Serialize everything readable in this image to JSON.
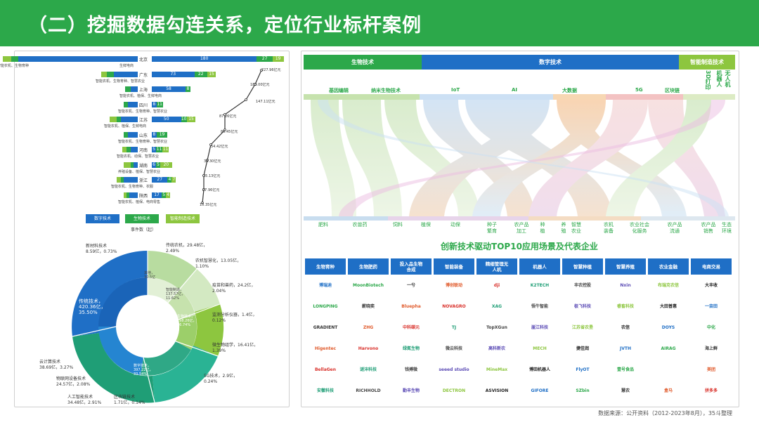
{
  "title": "（二）挖掘数据勾连关系，定位行业标杆案例",
  "left_bar": {
    "rows": [
      {
        "province": "北京",
        "left_label": "智能农机、生物育种",
        "right_label": "生鲜电商",
        "values": [
          "180",
          "27",
          "19"
        ]
      },
      {
        "province": "广东",
        "left_label": "智能农机、生物育种、智慧农业",
        "right_label": "",
        "values": [
          "73",
          "22",
          "15"
        ]
      },
      {
        "province": "上海",
        "left_label": "智能农机、植保、生鲜电商",
        "right_label": "",
        "values": [
          "58",
          "8",
          ""
        ]
      },
      {
        "province": "四川",
        "left_label": "智能农机、生物育种、智慧农业",
        "right_label": "",
        "values": [
          "8",
          "11",
          ""
        ]
      },
      {
        "province": "江苏",
        "left_label": "智能农机、植保、生鲜电商",
        "right_label": "",
        "values": [
          "50",
          "10",
          "15"
        ]
      },
      {
        "province": "山东",
        "left_label": "智能农机、生物育种、智慧农业",
        "right_label": "",
        "values": [
          "8",
          "19",
          ""
        ]
      },
      {
        "province": "河南",
        "left_label": "智能农机、动保、智慧农业",
        "right_label": "",
        "values": [
          "5",
          "11",
          "11"
        ]
      },
      {
        "province": "湖南",
        "left_label": "养殖设备、植保、智慧农业",
        "right_label": "",
        "values": [
          "6",
          "5",
          "20"
        ]
      },
      {
        "province": "浙江",
        "left_label": "智能农机、生物育种、农服",
        "right_label": "",
        "values": [
          "27",
          "4",
          "7"
        ]
      },
      {
        "province": "陕西",
        "left_label": "智能农机、植保、电商零售",
        "right_label": "",
        "values": [
          "17",
          "5",
          "4"
        ]
      }
    ],
    "line_labels": [
      "227.96亿元",
      "183.00亿元",
      "147.11亿元",
      "87.26亿元",
      "86.45亿元",
      "54.42亿元",
      "38.30亿元",
      "35.13亿元",
      "27.96亿元",
      "15.35亿元"
    ],
    "legend": [
      "数字技术",
      "生物技术",
      "智能制造技术"
    ],
    "axis_label": "事件数（起）"
  },
  "donut": {
    "outer_labels": [
      "新材料技术\n8.59亿，0.73%",
      "传统农机，29.48亿，\n2.49%",
      "农机智慧化，13.05亿，\n1.10%",
      "疫苗和兽药，24.2亿，\n2.04%",
      "监测分析仪器，1.4亿，\n0.12%",
      "微生物组学，16.41亿，\n1.39%",
      "5G技术，2.9亿，\n0.24%",
      "区块链技术\n1.71亿，0.14%",
      "人工智能技术\n34.48亿，2.91%",
      "物联网设备技术\n24.57亿，2.08%",
      "云计算技术\n38.69亿，3.27%"
    ],
    "inner_labels": [
      "传统技术，\n420.36亿，\n35.50%",
      "数字技术，\n397.22亿，\n33.54%",
      "生物技术，\n198.26亿，\n16.74%",
      "智能制造，\n137.57亿，\n11.62%",
      "其他，\n30.5亿"
    ]
  },
  "sankey": {
    "headers": [
      "生物技术",
      "数字技术",
      "智能制造技术"
    ],
    "top_categories": [
      "基因编辑",
      "纳米生物技术",
      "IoT",
      "AI",
      "大数据",
      "5G",
      "区块链",
      "3D打印",
      "机器人",
      "无人机"
    ],
    "bottom_categories": [
      "肥料",
      "农兽药",
      "饲料",
      "植保",
      "动保",
      "种子\n繁育",
      "农产品\n加工",
      "种\n植",
      "养\n殖",
      "智慧\n农业",
      "农机\n装备",
      "农业社会\n化服务",
      "农产品\n流通",
      "农产品\n销售",
      "生态\n环境"
    ]
  },
  "top10": {
    "title": "创新技术驱动TOP10应用场景及代表企业",
    "columns": [
      "生物育种",
      "生物肥药",
      "投入品生物\n合成",
      "智能装备",
      "精细管理无\n人机",
      "机器人",
      "智慧种植",
      "智慧养殖",
      "农业金融",
      "电商交易"
    ],
    "logos": [
      [
        "博瑞迪",
        "MoonBiotech\n慕恩生物",
        "一兮",
        "博创联动",
        "dji",
        "K2TECH",
        "丰农控股",
        "Nxin",
        "布瑞克农信",
        "大丰收"
      ],
      [
        "LONGPING",
        "薪晓奕",
        "Bluepha",
        "NOVAGRO",
        "XAG",
        "悟牛智能",
        "极飞科技",
        "睿畜科技",
        "大田普惠",
        "一亩田"
      ],
      [
        "GRADIENT",
        "ZHG",
        "中科碳元",
        "TJ",
        "TopXGun",
        "崖江科技",
        "江苏省农垦",
        "农信",
        "DOYS",
        "中化"
      ],
      [
        "Higentec",
        "Harvono",
        "绿氮生物",
        "微云科技",
        "高科新农",
        "MECH",
        "捷佳润",
        "JVTH",
        "AIRAG",
        "海上鲜"
      ],
      [
        "BellaGen",
        "谜沣科技",
        "钱搏微",
        "seeed studio",
        "MineMax",
        "博田机器人",
        "FlyOT",
        "壹号食品",
        "",
        "美团"
      ],
      [
        "安徽科技",
        "RICHHOLD",
        "勤丰生物",
        "DECTRON",
        "ASVISION",
        "GIFORE",
        "SZbin",
        "慧农",
        "盒马",
        "拼多多"
      ]
    ]
  },
  "footer": "数据来源：公开资料（2012-2023年8月），35斗整理"
}
